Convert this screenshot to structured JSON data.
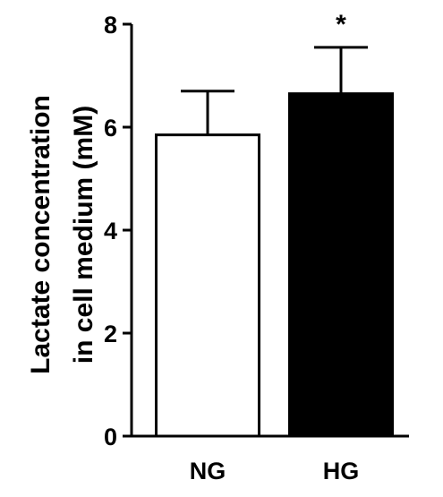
{
  "chart_data": {
    "type": "bar",
    "title": "",
    "categories": [
      "NG",
      "HG"
    ],
    "values": [
      5.85,
      6.65
    ],
    "errors": [
      0.85,
      0.9
    ],
    "bar_fill": [
      "#ffffff",
      "#000000"
    ],
    "bar_stroke": "#000000",
    "annotations": [
      "",
      "*"
    ],
    "xlabel": "",
    "ylabel_lines": [
      "Lactate concentration",
      "in cell medium (mM)"
    ],
    "ylim": [
      0,
      8
    ],
    "yticks": [
      "0",
      "2",
      "4",
      "6",
      "8"
    ],
    "grid": false,
    "legend": "none"
  }
}
